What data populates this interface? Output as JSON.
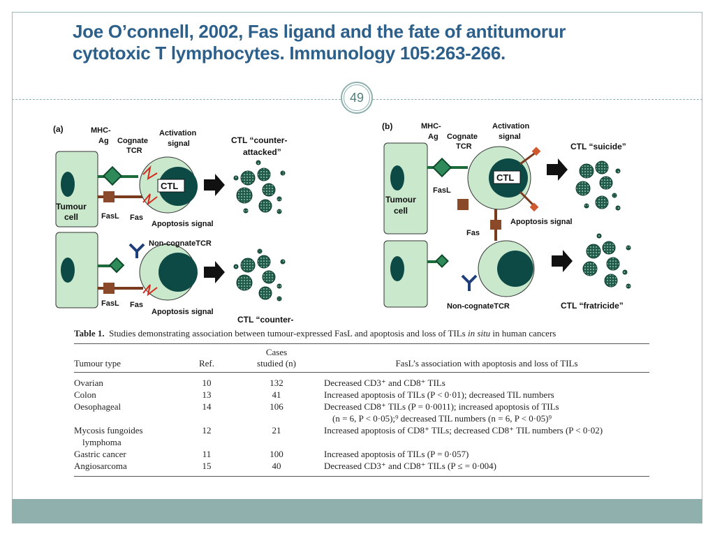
{
  "slide": {
    "title_line1": "Joe O’connell, 2002, Fas ligand and the fate of antitumorur",
    "title_line2": "cytotoxic T lymphocytes. Immunology 105:263-266.",
    "page_number": "49",
    "accent_color": "#8fb0ad",
    "title_color": "#2c5f8a"
  },
  "figure": {
    "panel_a": {
      "label": "(a)",
      "mhc": "MHC-",
      "ag": "Ag",
      "cognate": "Cognate",
      "tcr": "TCR",
      "activation": "Activation",
      "signal": "signal",
      "ctl": "CTL",
      "tumour": "Tumour",
      "cell": "cell",
      "fasl": "FasL",
      "fas": "Fas",
      "apoptosis_signal": "Apoptosis signal",
      "result_1": "CTL “counter-",
      "result_2": "attacked”",
      "noncognate": "Non-cognateTCR",
      "fasl2": "FasL",
      "fas2": "Fas",
      "apoptosis_signal2": "Apoptosis signal",
      "result_bottom": "CTL “counter-"
    },
    "panel_b": {
      "label": "(b)",
      "mhc": "MHC-",
      "ag": "Ag",
      "cognate": "Cognate",
      "tcr": "TCR",
      "activation": "Activation",
      "signal": "signal",
      "ctl": "CTL",
      "tumour": "Tumour",
      "cell": "cell",
      "fasl": "FasL",
      "fas": "Fas",
      "apoptosis_signal": "Apoptosis signal",
      "suicide": "CTL “suicide”",
      "noncognate": "Non-cognateTCR",
      "fratricide": "CTL “fratricide”"
    }
  },
  "table": {
    "caption_label": "Table 1.",
    "caption_text": "Studies demonstrating association between tumour-expressed FasL and apoptosis and loss of TILs ",
    "caption_italic": "in situ",
    "caption_end": " in human cancers",
    "headers": {
      "type": "Tumour type",
      "ref": "Ref.",
      "cases_1": "Cases",
      "cases_2": "studied (n)",
      "assoc": "FasL’s association with apoptosis and loss of TILs"
    },
    "rows": [
      {
        "type": "Ovarian",
        "ref": "10",
        "cases": "132",
        "assoc": "Decreased CD3⁺ and CD8⁺ TILs"
      },
      {
        "type": "Colon",
        "ref": "13",
        "cases": "41",
        "assoc": "Increased apoptosis of TILs (P < 0·01); decreased TIL numbers"
      },
      {
        "type": "Oesophageal",
        "ref": "14",
        "cases": "106",
        "assoc": "Decreased CD8⁺ TILs (P = 0·0011); increased apoptosis of TILs",
        "assoc_2": "(n = 6, P < 0·05);⁹ decreased TIL numbers (n = 6, P < 0·05)⁹"
      },
      {
        "type": "Mycosis fungoides",
        "type_2": "lymphoma",
        "ref": "12",
        "cases": "21",
        "assoc": "Increased apoptosis of CD8⁺ TILs; decreased CD8⁺ TIL numbers (P < 0·02)"
      },
      {
        "type": "Gastric cancer",
        "ref": "11",
        "cases": "100",
        "assoc": "Increased apoptosis of TILs (P = 0·057)"
      },
      {
        "type": "Angiosarcoma",
        "ref": "15",
        "cases": "40",
        "assoc": "Decreased CD3⁺ and CD8⁺ TILs (P ≤ = 0·004)"
      }
    ]
  }
}
